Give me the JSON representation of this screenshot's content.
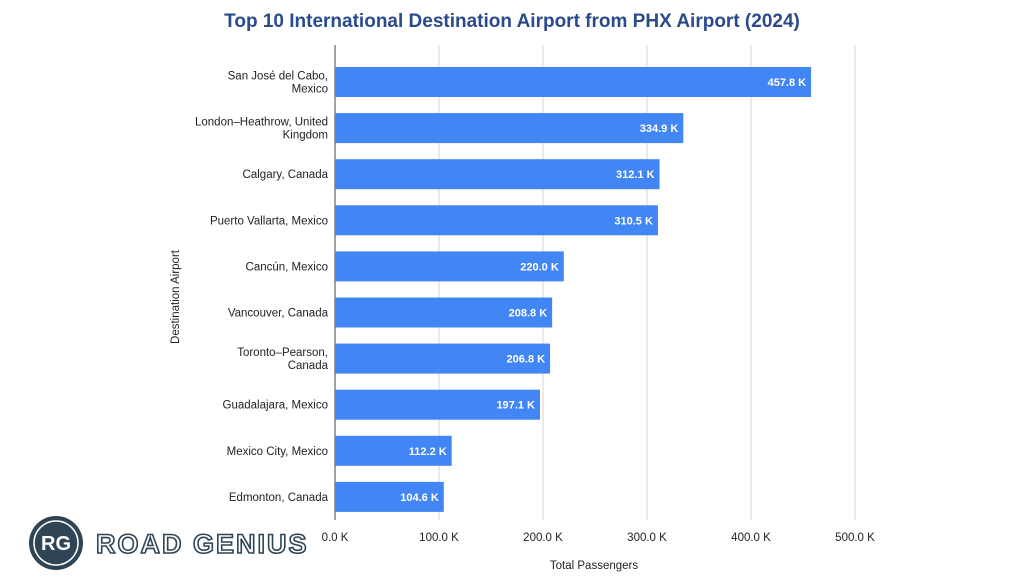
{
  "chart_data": {
    "type": "bar",
    "orientation": "horizontal",
    "title": "Top 10 International Destination Airport from PHX Airport (2024)",
    "xlabel": "Total Passengers",
    "ylabel": "Destination Airport",
    "xlim": [
      0,
      500
    ],
    "x_ticks": [
      0,
      100,
      200,
      300,
      400,
      500
    ],
    "x_tick_labels": [
      "0.0 K",
      "100.0 K",
      "200.0 K",
      "300.0 K",
      "400.0 K",
      "500.0 K"
    ],
    "grid": true,
    "legend": "none",
    "categories": [
      [
        "San José del Cabo,",
        "Mexico"
      ],
      [
        "London–Heathrow, United",
        "Kingdom"
      ],
      [
        "Calgary, Canada"
      ],
      [
        "Puerto Vallarta, Mexico"
      ],
      [
        "Cancún, Mexico"
      ],
      [
        "Vancouver, Canada"
      ],
      [
        "Toronto–Pearson,",
        "Canada"
      ],
      [
        "Guadalajara, Mexico"
      ],
      [
        "Mexico City, Mexico"
      ],
      [
        "Edmonton, Canada"
      ]
    ],
    "values": [
      457.8,
      334.9,
      312.1,
      310.5,
      220.0,
      208.8,
      206.8,
      197.1,
      112.2,
      104.6
    ],
    "value_labels": [
      "457.8 K",
      "334.9 K",
      "312.1 K",
      "310.5 K",
      "220.0 K",
      "208.8 K",
      "206.8 K",
      "197.1 K",
      "112.2 K",
      "104.6 K"
    ],
    "unit": "thousand passengers"
  },
  "logo": {
    "monogram": "RG",
    "name": "ROAD GENIUS"
  },
  "colors": {
    "bar": "#4285f4",
    "title": "#2b4a8b",
    "logo": "#2f4556"
  }
}
